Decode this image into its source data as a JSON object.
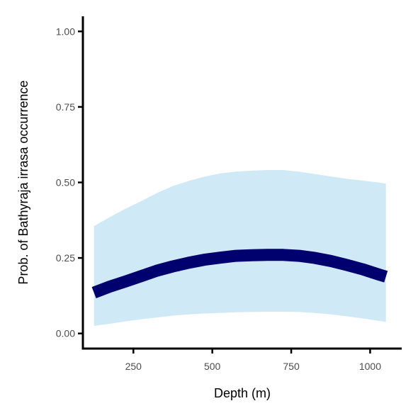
{
  "chart_data": {
    "type": "line",
    "xlabel": "Depth (m)",
    "ylabel": "Prob. of  Bathyraja irrasa  occurrence",
    "xlim": [
      90,
      1100
    ],
    "ylim": [
      -0.05,
      1.05
    ],
    "x_ticks": [
      250,
      500,
      750,
      1000
    ],
    "x_tick_labels": [
      "250",
      "500",
      "750",
      "1000"
    ],
    "y_ticks": [
      0,
      0.25,
      0.5,
      0.75,
      1.0
    ],
    "y_tick_labels": [
      "0.00",
      "0.25",
      "0.50",
      "0.75",
      "1.00"
    ],
    "grid": false,
    "series": [
      {
        "role": "fit",
        "x": [
          125,
          175,
          225,
          275,
          325,
          375,
          425,
          475,
          525,
          575,
          625,
          675,
          725,
          775,
          825,
          875,
          925,
          975,
          1025,
          1050
        ],
        "y": [
          0.135,
          0.155,
          0.172,
          0.19,
          0.208,
          0.222,
          0.234,
          0.244,
          0.251,
          0.257,
          0.259,
          0.26,
          0.26,
          0.257,
          0.25,
          0.24,
          0.227,
          0.213,
          0.196,
          0.188
        ]
      },
      {
        "role": "confidence-band",
        "x": [
          125,
          175,
          225,
          275,
          325,
          375,
          425,
          475,
          525,
          575,
          625,
          675,
          725,
          775,
          825,
          875,
          925,
          975,
          1025,
          1050
        ],
        "lower": [
          0.025,
          0.032,
          0.04,
          0.047,
          0.053,
          0.059,
          0.063,
          0.066,
          0.068,
          0.07,
          0.071,
          0.072,
          0.072,
          0.071,
          0.068,
          0.063,
          0.057,
          0.05,
          0.042,
          0.038
        ],
        "upper": [
          0.355,
          0.385,
          0.413,
          0.438,
          0.465,
          0.488,
          0.505,
          0.519,
          0.53,
          0.536,
          0.539,
          0.541,
          0.541,
          0.536,
          0.528,
          0.52,
          0.512,
          0.506,
          0.5,
          0.496
        ]
      }
    ],
    "colors": {
      "fit_line": "#00006f",
      "band": "#d0e9f6",
      "axis": "#000000",
      "tick_label": "#4d4d4d"
    }
  }
}
